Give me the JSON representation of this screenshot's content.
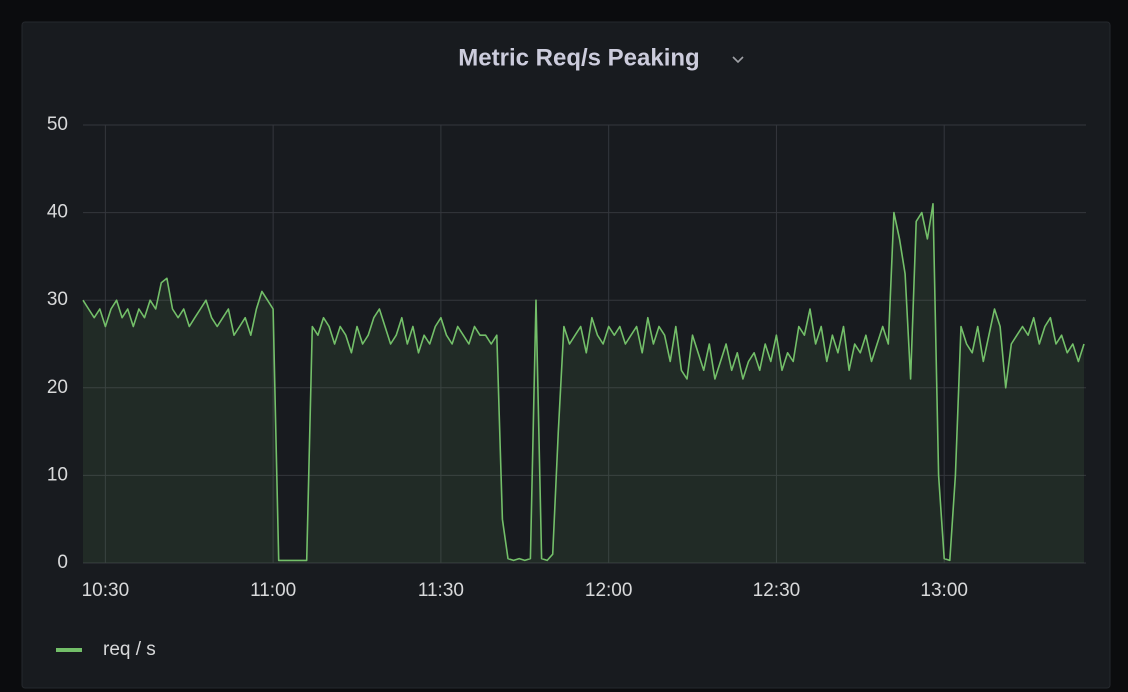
{
  "chart_data": {
    "type": "line",
    "title": "Metric Req/s Peaking",
    "x": [
      "10:26",
      "10:27",
      "10:28",
      "10:29",
      "10:30",
      "10:31",
      "10:32",
      "10:33",
      "10:34",
      "10:35",
      "10:36",
      "10:37",
      "10:38",
      "10:39",
      "10:40",
      "10:41",
      "10:42",
      "10:43",
      "10:44",
      "10:45",
      "10:46",
      "10:47",
      "10:48",
      "10:49",
      "10:50",
      "10:51",
      "10:52",
      "10:53",
      "10:54",
      "10:55",
      "10:56",
      "10:57",
      "10:58",
      "10:59",
      "11:00",
      "11:01",
      "11:02",
      "11:03",
      "11:04",
      "11:05",
      "11:06",
      "11:07",
      "11:08",
      "11:09",
      "11:10",
      "11:11",
      "11:12",
      "11:13",
      "11:14",
      "11:15",
      "11:16",
      "11:17",
      "11:18",
      "11:19",
      "11:20",
      "11:21",
      "11:22",
      "11:23",
      "11:24",
      "11:25",
      "11:26",
      "11:27",
      "11:28",
      "11:29",
      "11:30",
      "11:31",
      "11:32",
      "11:33",
      "11:34",
      "11:35",
      "11:36",
      "11:37",
      "11:38",
      "11:39",
      "11:40",
      "11:41",
      "11:42",
      "11:43",
      "11:44",
      "11:45",
      "11:46",
      "11:47",
      "11:48",
      "11:49",
      "11:50",
      "11:51",
      "11:52",
      "11:53",
      "11:54",
      "11:55",
      "11:56",
      "11:57",
      "11:58",
      "11:59",
      "12:00",
      "12:01",
      "12:02",
      "12:03",
      "12:04",
      "12:05",
      "12:06",
      "12:07",
      "12:08",
      "12:09",
      "12:10",
      "12:11",
      "12:12",
      "12:13",
      "12:14",
      "12:15",
      "12:16",
      "12:17",
      "12:18",
      "12:19",
      "12:20",
      "12:21",
      "12:22",
      "12:23",
      "12:24",
      "12:25",
      "12:26",
      "12:27",
      "12:28",
      "12:29",
      "12:30",
      "12:31",
      "12:32",
      "12:33",
      "12:34",
      "12:35",
      "12:36",
      "12:37",
      "12:38",
      "12:39",
      "12:40",
      "12:41",
      "12:42",
      "12:43",
      "12:44",
      "12:45",
      "12:46",
      "12:47",
      "12:48",
      "12:49",
      "12:50",
      "12:51",
      "12:52",
      "12:53",
      "12:54",
      "12:55",
      "12:56",
      "12:57",
      "12:58",
      "12:59",
      "13:00",
      "13:01",
      "13:02",
      "13:03",
      "13:04",
      "13:05",
      "13:06",
      "13:07",
      "13:08",
      "13:09",
      "13:10",
      "13:11",
      "13:12",
      "13:13",
      "13:14",
      "13:15",
      "13:16",
      "13:17",
      "13:18",
      "13:19",
      "13:20",
      "13:21",
      "13:22",
      "13:23",
      "13:24",
      "13:25"
    ],
    "series": [
      {
        "name": "req / s",
        "color": "#73bf69",
        "values": [
          30,
          29,
          28,
          29,
          27,
          29,
          30,
          28,
          29,
          27,
          29,
          28,
          30,
          29,
          32,
          32.5,
          29,
          28,
          29,
          27,
          28,
          29,
          30,
          28,
          27,
          28,
          29,
          26,
          27,
          28,
          26,
          29,
          31,
          30,
          29,
          0.3,
          0.3,
          0.3,
          0.3,
          0.3,
          0.3,
          27,
          26,
          28,
          27,
          25,
          27,
          26,
          24,
          27,
          25,
          26,
          28,
          29,
          27,
          25,
          26,
          28,
          25,
          27,
          24,
          26,
          25,
          27,
          28,
          26,
          25,
          27,
          26,
          25,
          27,
          26,
          26,
          25,
          26,
          5,
          0.5,
          0.3,
          0.5,
          0.3,
          0.5,
          30,
          0.5,
          0.3,
          1,
          15,
          27,
          25,
          26,
          27,
          24,
          28,
          26,
          25,
          27,
          26,
          27,
          25,
          26,
          27,
          24,
          28,
          25,
          27,
          26,
          23,
          27,
          22,
          21,
          26,
          24,
          22,
          25,
          21,
          23,
          25,
          22,
          24,
          21,
          23,
          24,
          22,
          25,
          23,
          26,
          22,
          24,
          23,
          27,
          26,
          29,
          25,
          27,
          23,
          26,
          24,
          27,
          22,
          25,
          24,
          26,
          23,
          25,
          27,
          25,
          40,
          37,
          33,
          21,
          39,
          40,
          37,
          41,
          10,
          0.5,
          0.3,
          10,
          27,
          25,
          24,
          27,
          23,
          26,
          29,
          27,
          20,
          25,
          26,
          27,
          26,
          28,
          25,
          27,
          28,
          25,
          26,
          24,
          25,
          23,
          25
        ]
      }
    ],
    "xlim": [
      "10:26",
      "13:25"
    ],
    "xticks": [
      "10:30",
      "11:00",
      "11:30",
      "12:00",
      "12:30",
      "13:00"
    ],
    "ylim": [
      0,
      50
    ],
    "yticks": [
      0,
      10,
      20,
      30,
      40,
      50
    ],
    "grid": true,
    "legend": "bottom"
  }
}
